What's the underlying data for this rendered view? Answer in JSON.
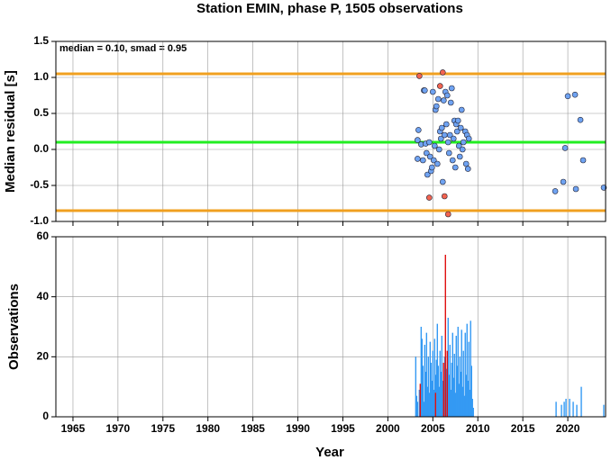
{
  "chart_data": [
    {
      "type": "scatter",
      "title": "Station EMIN, phase P, 1505 observations",
      "ylabel": "Median residual [s]",
      "annotation": "median = 0.10, smad = 0.95",
      "xlim": [
        1963.1,
        2024.2
      ],
      "xticks": [
        1965,
        1970,
        1975,
        1980,
        1985,
        1990,
        1995,
        2000,
        2005,
        2010,
        2015,
        2020
      ],
      "ylim": [
        -1,
        1.5
      ],
      "yticks": [
        {
          "value": -1,
          "label": "-1.0"
        },
        -0.5,
        {
          "value": 0,
          "label": "0.0"
        },
        0.5,
        {
          "value": 1,
          "label": "1.0"
        },
        1.5
      ],
      "grid": true,
      "hlines": [
        {
          "value": 0.1,
          "color": "#22ee22"
        },
        {
          "value": 1.05,
          "color": "#f0a020"
        },
        {
          "value": -0.85,
          "color": "#f0a020"
        }
      ],
      "series": [
        {
          "color": "#6fa3f2",
          "x": [
            2003.3,
            2003.4,
            2003.3,
            2003.7,
            2003.9,
            2004.0,
            2004.1,
            2004.2,
            2004.3,
            2004.4,
            2004.6,
            2004.7,
            2004.8,
            2004.9,
            2005.0,
            2005.1,
            2005.2,
            2005.3,
            2005.4,
            2005.5,
            2005.6,
            2005.7,
            2005.8,
            2005.9,
            2006.0,
            2006.1,
            2006.2,
            2006.3,
            2006.4,
            2006.5,
            2006.6,
            2006.7,
            2006.8,
            2006.9,
            2007.0,
            2007.1,
            2007.2,
            2007.3,
            2007.4,
            2007.5,
            2007.6,
            2007.7,
            2007.8,
            2007.9,
            2008.0,
            2008.1,
            2008.2,
            2008.3,
            2008.4,
            2008.6,
            2008.7,
            2008.8,
            2008.9,
            2009.0,
            2018.6,
            2019.5,
            2019.7,
            2020.0,
            2020.8,
            2020.9,
            2021.4,
            2021.7,
            2024.0
          ],
          "values": [
            0.13,
            0.27,
            -0.13,
            0.07,
            -0.15,
            0.82,
            0.82,
            0.08,
            -0.05,
            -0.35,
            0.1,
            -0.1,
            -0.3,
            -0.25,
            0.8,
            -0.15,
            0.05,
            0.55,
            0.6,
            -0.2,
            0.7,
            0.0,
            0.25,
            0.15,
            0.3,
            -0.45,
            0.68,
            0.2,
            0.8,
            0.35,
            0.75,
            0.1,
            -0.05,
            0.2,
            0.65,
            0.85,
            -0.15,
            0.15,
            0.4,
            -0.25,
            0.35,
            0.25,
            0.4,
            0.05,
            -0.1,
            0.3,
            0.55,
            0.0,
            0.1,
            0.25,
            -0.2,
            0.2,
            -0.27,
            0.15,
            -0.58,
            -0.45,
            0.02,
            0.74,
            0.76,
            -0.55,
            0.41,
            -0.15,
            -0.53
          ]
        },
        {
          "color": "#f26450",
          "x": [
            2003.5,
            2004.6,
            2005.8,
            2006.1,
            2006.3,
            2006.7
          ],
          "values": [
            1.02,
            -0.67,
            0.88,
            1.07,
            -0.65,
            -0.9
          ]
        }
      ]
    },
    {
      "type": "bar",
      "ylabel": "Observations",
      "xlabel": "Year",
      "xlim": [
        1963.1,
        2024.2
      ],
      "xticks": [
        1965,
        1970,
        1975,
        1980,
        1985,
        1990,
        1995,
        2000,
        2005,
        2010,
        2015,
        2020
      ],
      "ylim": [
        0,
        60
      ],
      "yticks": [
        0,
        20,
        40,
        60
      ],
      "grid": true,
      "series": [
        {
          "color": "#3399f3",
          "x": [
            2003.1,
            2003.2,
            2003.3,
            2003.5,
            2003.7,
            2003.8,
            2003.9,
            2004.0,
            2004.1,
            2004.2,
            2004.3,
            2004.4,
            2004.5,
            2004.6,
            2004.7,
            2004.8,
            2004.9,
            2005.0,
            2005.1,
            2005.2,
            2005.3,
            2005.4,
            2005.5,
            2005.6,
            2005.7,
            2005.8,
            2005.9,
            2006.0,
            2006.1,
            2006.3,
            2006.5,
            2006.7,
            2006.8,
            2006.9,
            2007.0,
            2007.1,
            2007.2,
            2007.3,
            2007.4,
            2007.5,
            2007.6,
            2007.7,
            2007.8,
            2007.9,
            2008.0,
            2008.1,
            2008.2,
            2008.3,
            2008.4,
            2008.5,
            2008.6,
            2008.7,
            2008.8,
            2008.9,
            2009.0,
            2009.1,
            2009.2,
            2009.3,
            2009.4,
            2009.5,
            2018.7,
            2019.3,
            2019.6,
            2019.8,
            2020.2,
            2020.6,
            2021.0,
            2021.5,
            2024.0
          ],
          "values": [
            20,
            7,
            5,
            9,
            30,
            26,
            17,
            5,
            24,
            15,
            28,
            10,
            20,
            8,
            25,
            18,
            12,
            22,
            9,
            26,
            14,
            19,
            31,
            17,
            10,
            22,
            15,
            27,
            12,
            20,
            16,
            33,
            14,
            24,
            9,
            18,
            28,
            13,
            21,
            8,
            27,
            17,
            30,
            11,
            20,
            15,
            29,
            10,
            22,
            7,
            28,
            14,
            31,
            12,
            25,
            9,
            32,
            17,
            6,
            3,
            5,
            4,
            5,
            6,
            6,
            5,
            4,
            10,
            4
          ]
        },
        {
          "color": "#e01010",
          "x": [
            2003.6,
            2005.3,
            2006.2,
            2006.4,
            2006.6
          ],
          "values": [
            11,
            8,
            18,
            54,
            22
          ]
        }
      ]
    }
  ]
}
